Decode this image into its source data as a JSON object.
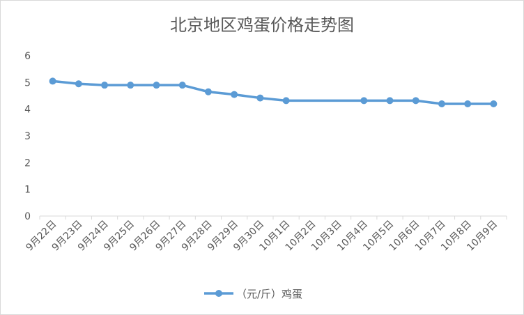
{
  "chart_data": {
    "type": "line",
    "title": "北京地区鸡蛋价格走势图",
    "categories": [
      "9月22日",
      "9月23日",
      "9月24日",
      "9月25日",
      "9月26日",
      "9月27日",
      "9月28日",
      "9月29日",
      "9月30日",
      "10月1日",
      "10月2日",
      "10月3日",
      "10月4日",
      "10月5日",
      "10月6日",
      "10月7日",
      "10月8日",
      "10月9日"
    ],
    "series": [
      {
        "name": "（元/斤）鸡蛋",
        "values": [
          5.05,
          4.95,
          4.9,
          4.9,
          4.9,
          4.9,
          4.65,
          4.55,
          4.42,
          4.32,
          null,
          null,
          4.32,
          4.32,
          4.32,
          4.2,
          4.2,
          4.2
        ],
        "color": "#5b9bd5"
      }
    ],
    "yticks": [
      "0",
      "1",
      "2",
      "3",
      "4",
      "5",
      "6"
    ],
    "ylim": [
      0,
      6
    ],
    "grid": false,
    "legend": "bottom"
  }
}
